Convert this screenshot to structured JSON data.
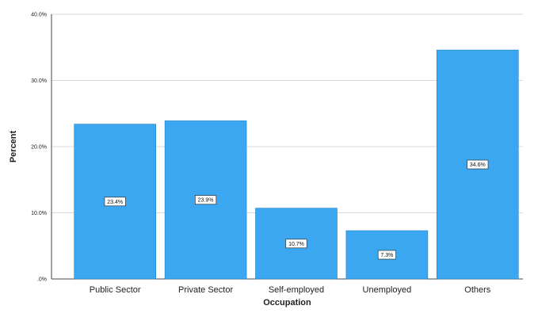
{
  "chart_data": {
    "type": "bar",
    "title": "",
    "xlabel": "Occupation",
    "ylabel": "Percent",
    "categories": [
      "Public Sector",
      "Private Sector",
      "Self-employed",
      "Unemployed",
      "Others"
    ],
    "values": [
      23.4,
      23.9,
      10.7,
      7.3,
      34.6
    ],
    "data_labels": [
      "23.4%",
      "23.9%",
      "10.7%",
      "7.3%",
      "34.6%"
    ],
    "yticks": [
      0,
      10,
      20,
      30,
      40
    ],
    "ytick_labels": [
      ".0%",
      "10.0%",
      "20.0%",
      "30.0%",
      "40.0%"
    ],
    "ylim": [
      0,
      40
    ],
    "grid": true,
    "legend": "none",
    "bar_color": "#3aa7f0",
    "bar_edge_color": "#1f7fc4"
  }
}
